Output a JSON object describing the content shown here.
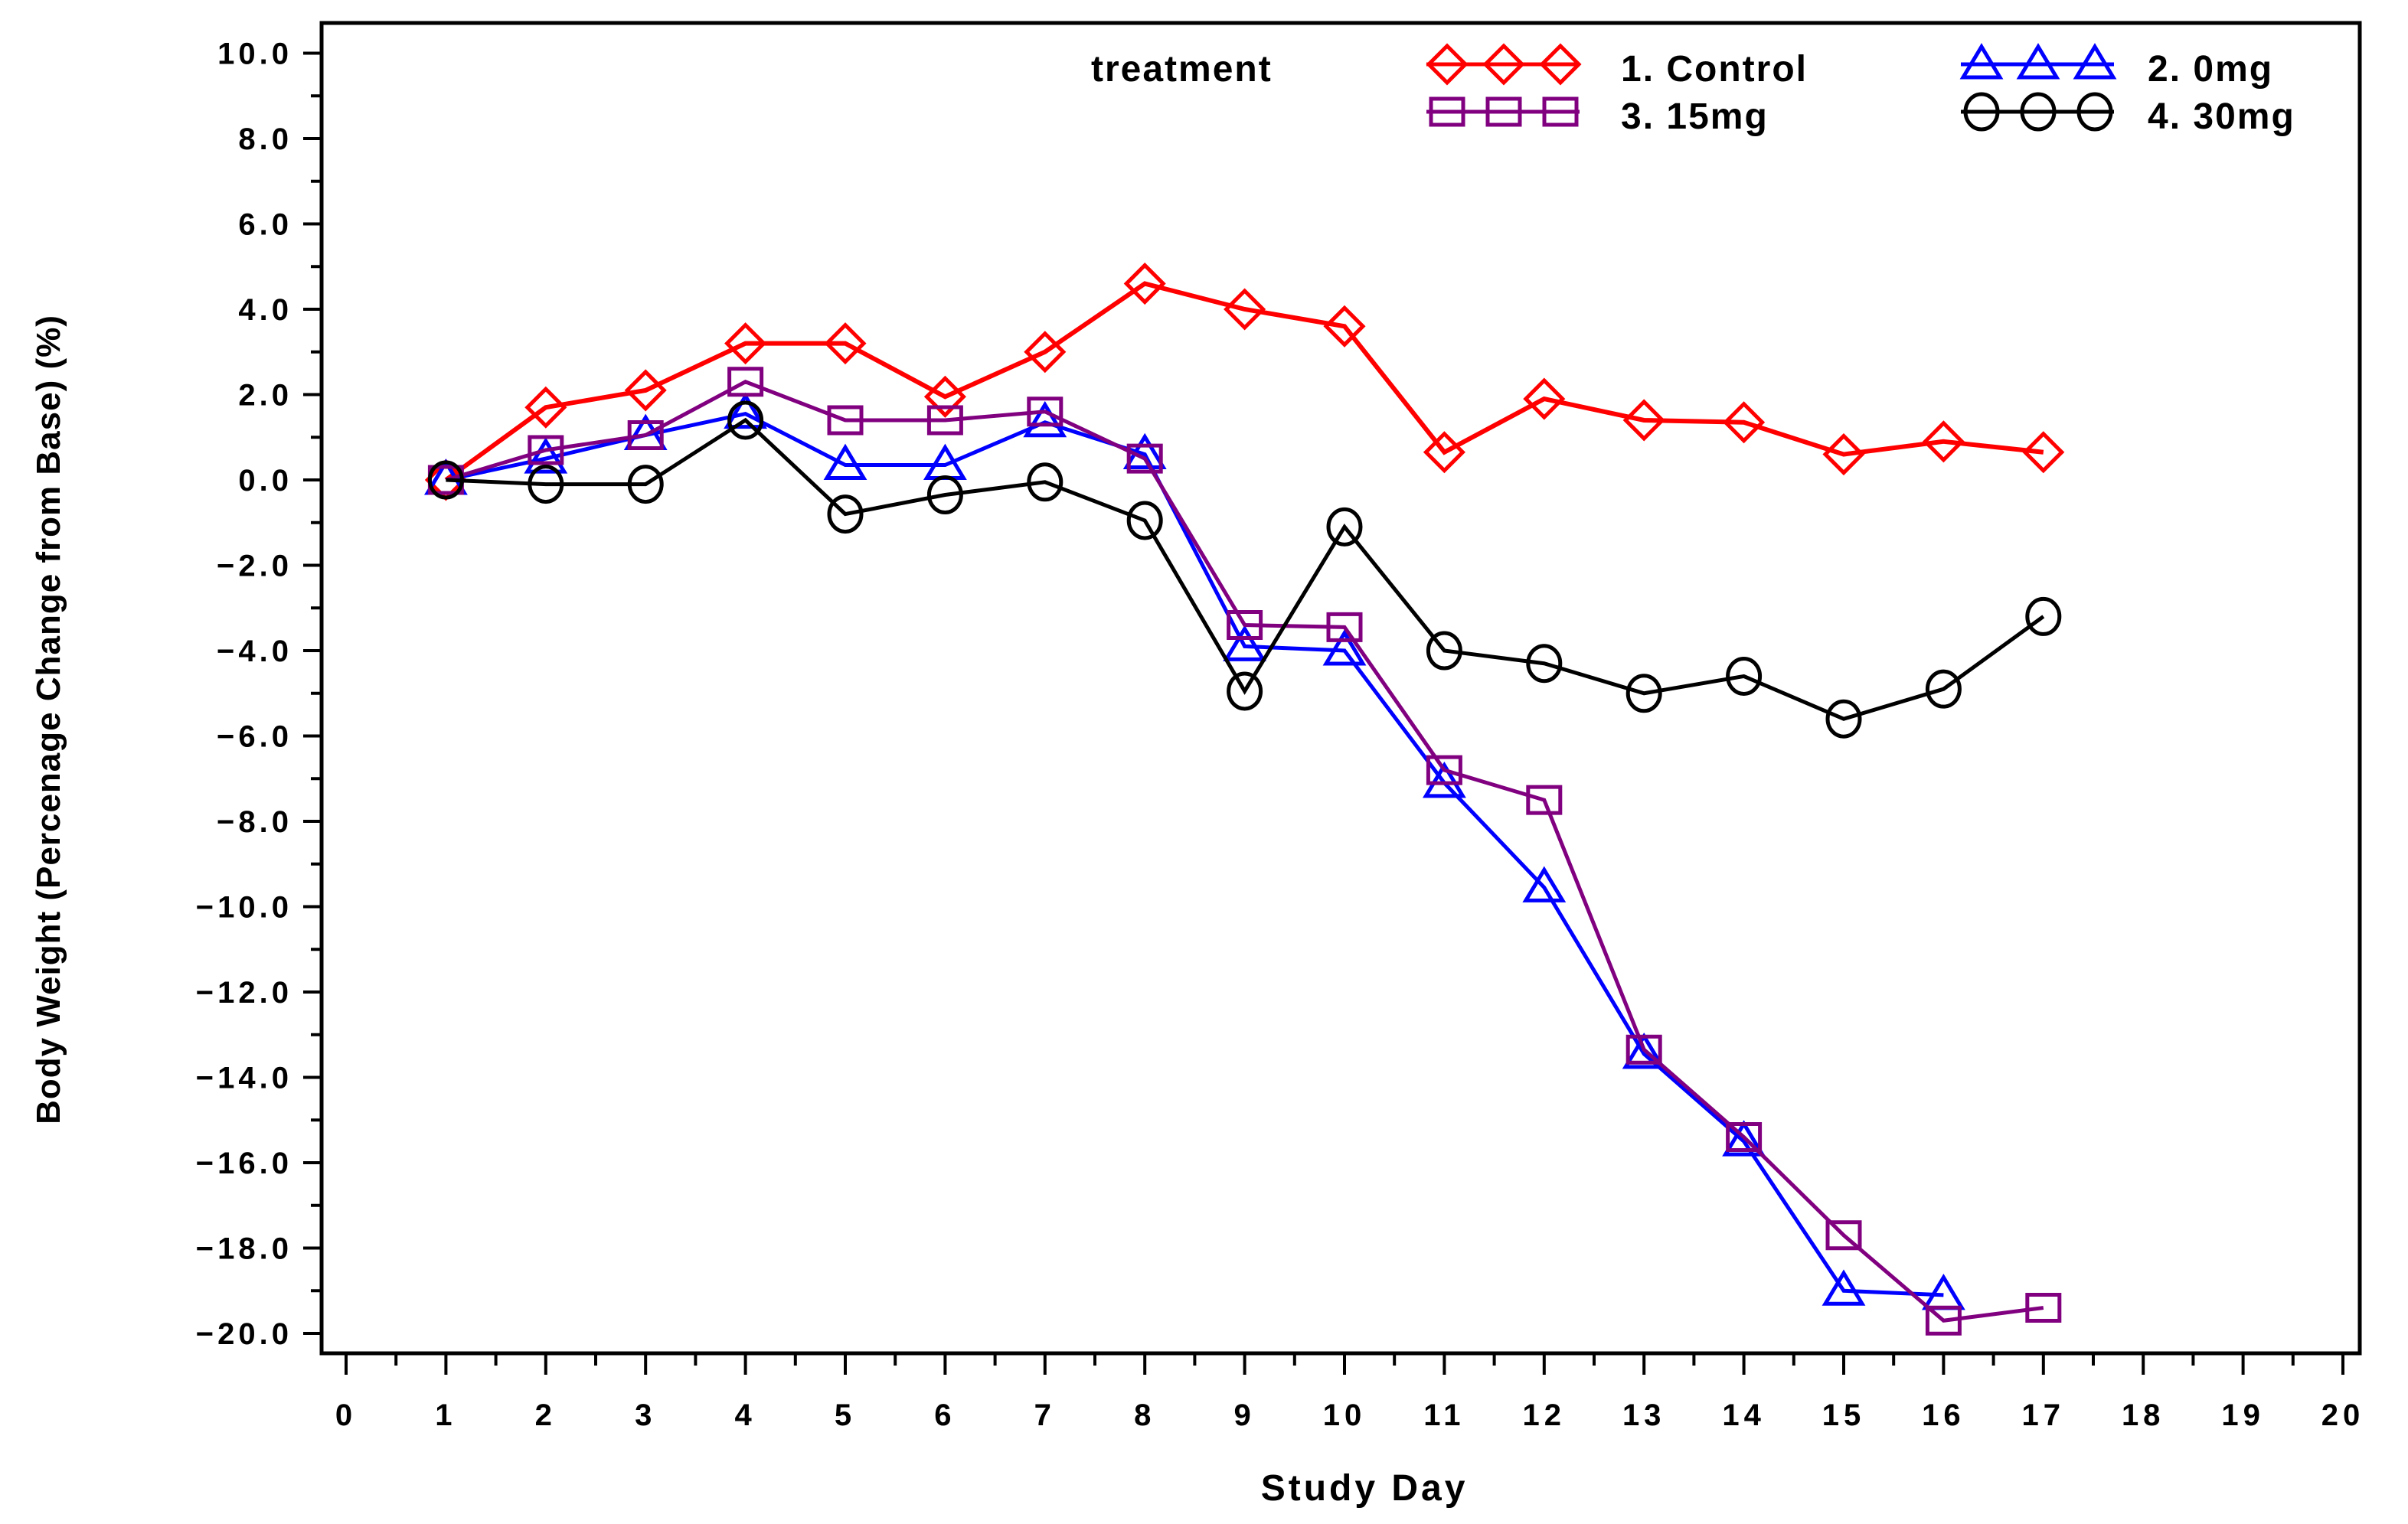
{
  "chart_data": {
    "type": "line",
    "title": "",
    "xlabel": "Study Day",
    "ylabel": "Body Weight (Percenage Change from Base) (%)",
    "xlim": [
      0,
      20
    ],
    "ylim": [
      -20,
      10
    ],
    "x_major_step": 1,
    "x_minor_step": 0.5,
    "y_major_step": 2,
    "y_minor_step": 1,
    "x_tick_labels": [
      "0",
      "1",
      "2",
      "3",
      "4",
      "5",
      "6",
      "7",
      "8",
      "9",
      "10",
      "11",
      "12",
      "13",
      "14",
      "15",
      "16",
      "17",
      "18",
      "19",
      "20"
    ],
    "y_tick_labels": [
      "10.0",
      "8.0",
      "6.0",
      "4.0",
      "2.0",
      "0.0",
      "−2.0",
      "−4.0",
      "−6.0",
      "−8.0",
      "−10.0",
      "−12.0",
      "−14.0",
      "−16.0",
      "−18.0",
      "−20.0"
    ],
    "grid": false,
    "legend_position": "top-inside",
    "legend_title": "treatment",
    "series": [
      {
        "name": "1. Control",
        "color": "#ff0000",
        "marker": "diamond",
        "points": [
          [
            1,
            0.0
          ],
          [
            2,
            1.7
          ],
          [
            3,
            2.1
          ],
          [
            4,
            3.2
          ],
          [
            5,
            3.2
          ],
          [
            6,
            1.95
          ],
          [
            7,
            3.0
          ],
          [
            8,
            4.6
          ],
          [
            9,
            4.0
          ],
          [
            10,
            3.6
          ],
          [
            11,
            0.65
          ],
          [
            12,
            1.9
          ],
          [
            13,
            1.4
          ],
          [
            14,
            1.35
          ],
          [
            15,
            0.6
          ],
          [
            16,
            0.9
          ],
          [
            17,
            0.65
          ]
        ]
      },
      {
        "name": "2. 0mg",
        "color": "#0000ff",
        "marker": "triangle",
        "points": [
          [
            1,
            0.0
          ],
          [
            2,
            0.5
          ],
          [
            3,
            1.05
          ],
          [
            4,
            1.55
          ],
          [
            5,
            0.35
          ],
          [
            6,
            0.35
          ],
          [
            7,
            1.35
          ],
          [
            8,
            0.6
          ],
          [
            9,
            -3.9
          ],
          [
            10,
            -4.0
          ],
          [
            11,
            -7.1
          ],
          [
            12,
            -9.55
          ],
          [
            13,
            -13.45
          ],
          [
            14,
            -15.5
          ],
          [
            15,
            -19.0
          ],
          [
            16,
            -19.1
          ]
        ]
      },
      {
        "name": "3. 15mg",
        "color": "#800080",
        "marker": "square",
        "points": [
          [
            1,
            0.0
          ],
          [
            2,
            0.7
          ],
          [
            3,
            1.05
          ],
          [
            4,
            2.3
          ],
          [
            5,
            1.4
          ],
          [
            6,
            1.4
          ],
          [
            7,
            1.6
          ],
          [
            8,
            0.5
          ],
          [
            9,
            -3.4
          ],
          [
            10,
            -3.45
          ],
          [
            11,
            -6.8
          ],
          [
            12,
            -7.5
          ],
          [
            13,
            -13.35
          ],
          [
            14,
            -15.4
          ],
          [
            15,
            -17.7
          ],
          [
            16,
            -19.7
          ],
          [
            17,
            -19.4
          ]
        ]
      },
      {
        "name": "4. 30mg",
        "color": "#000000",
        "marker": "circle",
        "points": [
          [
            1,
            0.0
          ],
          [
            2,
            -0.1
          ],
          [
            3,
            -0.1
          ],
          [
            4,
            1.4
          ],
          [
            5,
            -0.8
          ],
          [
            6,
            -0.35
          ],
          [
            7,
            -0.05
          ],
          [
            8,
            -0.95
          ],
          [
            9,
            -4.95
          ],
          [
            10,
            -1.1
          ],
          [
            11,
            -4.0
          ],
          [
            12,
            -4.3
          ],
          [
            13,
            -5.0
          ],
          [
            14,
            -4.6
          ],
          [
            15,
            -5.6
          ],
          [
            16,
            -4.9
          ],
          [
            17,
            -3.2
          ]
        ]
      }
    ]
  },
  "colors": {
    "frame": "#000000",
    "background": "#ffffff"
  }
}
